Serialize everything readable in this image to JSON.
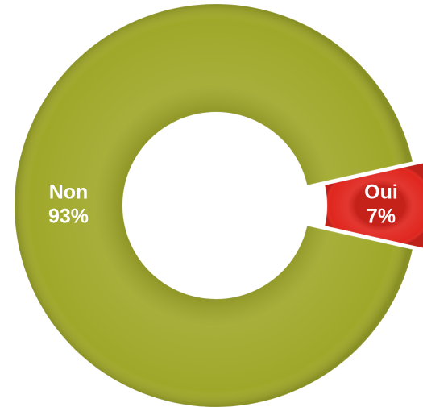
{
  "chart_data": {
    "type": "donut",
    "categories": [
      "Non",
      "Oui"
    ],
    "values": [
      93,
      7
    ],
    "value_labels": [
      "93%",
      "7%"
    ],
    "colors": [
      "#a0a82a",
      "#e0261e"
    ],
    "exploded": [
      false,
      true
    ]
  }
}
